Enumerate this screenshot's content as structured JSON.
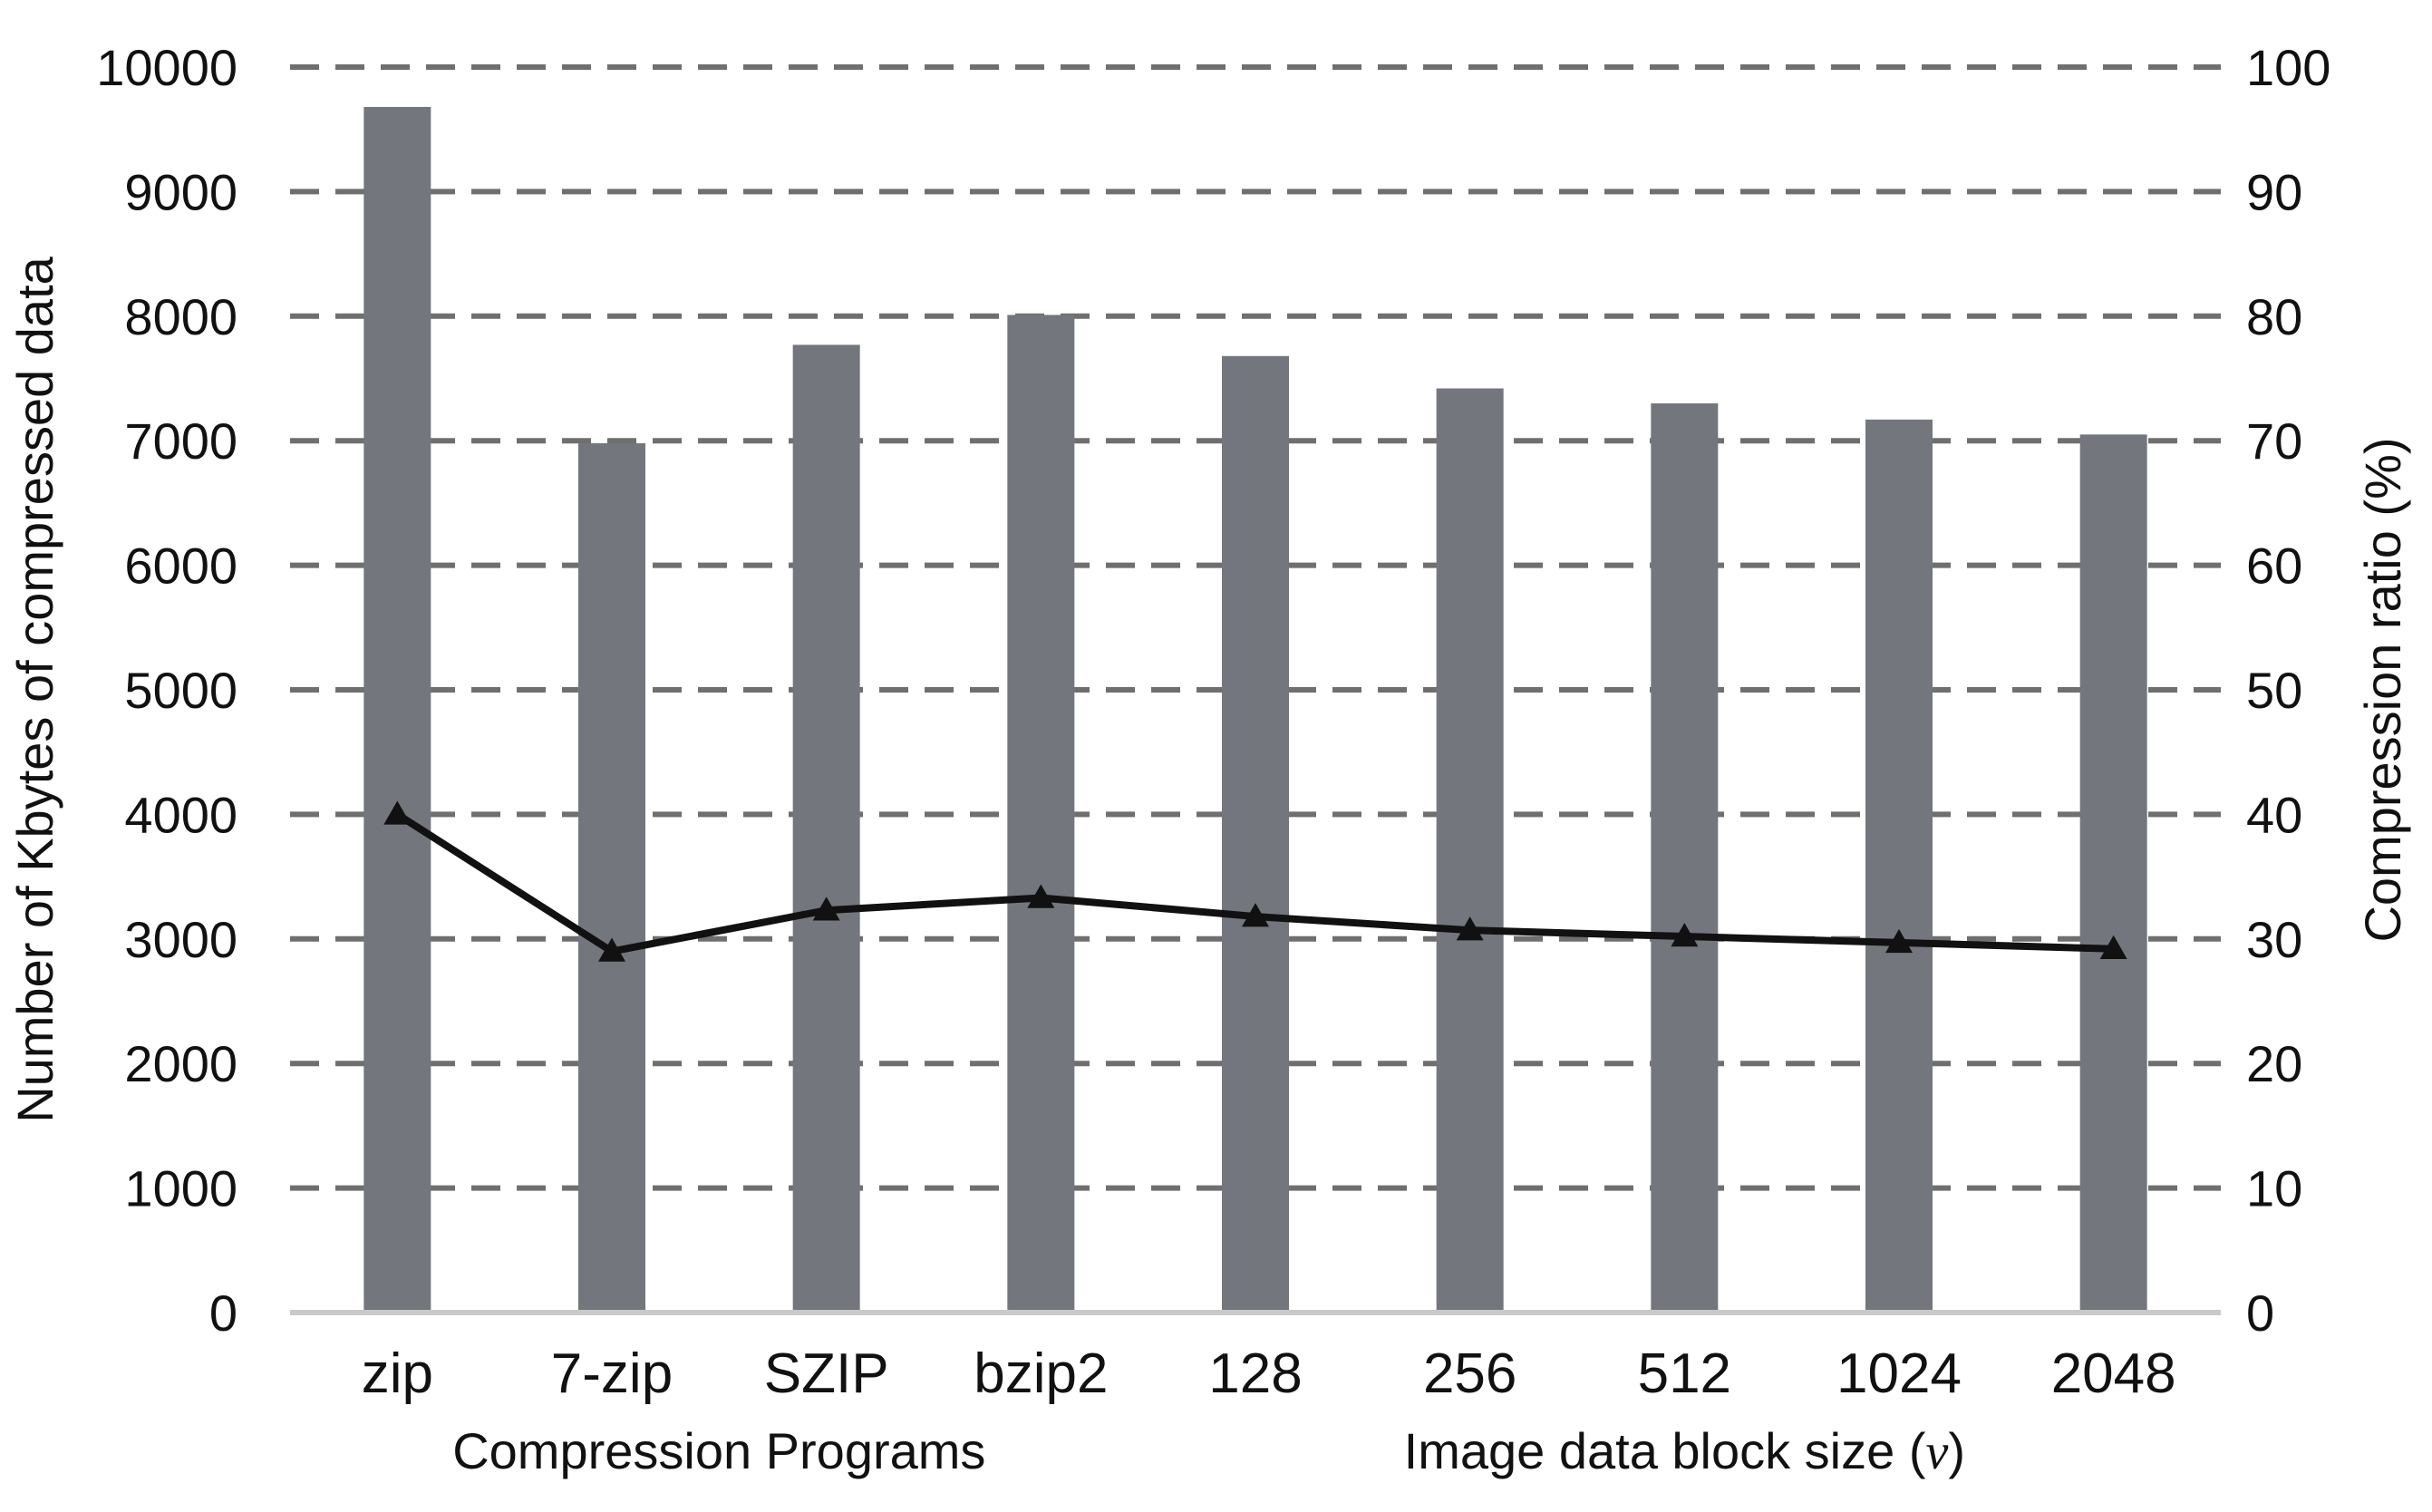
{
  "chart_data": {
    "type": "bar",
    "categories": [
      "zip",
      "7-zip",
      "SZIP",
      "bzip2",
      "128",
      "256",
      "512",
      "1024",
      "2048"
    ],
    "series": [
      {
        "type": "bar",
        "axis": "left",
        "color": "#73777d",
        "values": [
          9680,
          6980,
          7770,
          8010,
          7680,
          7420,
          7300,
          7170,
          7050
        ]
      },
      {
        "type": "line",
        "axis": "right",
        "color": "#111111",
        "marker": "triangle",
        "values": [
          40,
          29,
          32.3,
          33.3,
          31.8,
          30.7,
          30.2,
          29.7,
          29.2
        ]
      }
    ],
    "ylabel": "Number of Kbytes of compressed data",
    "ylabel_right": "Compression ratio (%)",
    "ylim": [
      0,
      10000
    ],
    "yticks": [
      "0",
      "1000",
      "2000",
      "3000",
      "4000",
      "5000",
      "6000",
      "7000",
      "8000",
      "9000",
      "10000"
    ],
    "ylim_right": [
      0,
      100
    ],
    "yticks_right": [
      "0",
      "10",
      "20",
      "30",
      "40",
      "50",
      "60",
      "70",
      "80",
      "90",
      "100"
    ],
    "group_labels": [
      {
        "text": "Compression  Programs",
        "span": [
          0,
          3
        ]
      },
      {
        "text": "Image data block size (",
        "italic_suffix": "v",
        "close": ")",
        "span": [
          4,
          8
        ]
      }
    ],
    "grid": true,
    "grid_style": "dashed"
  }
}
